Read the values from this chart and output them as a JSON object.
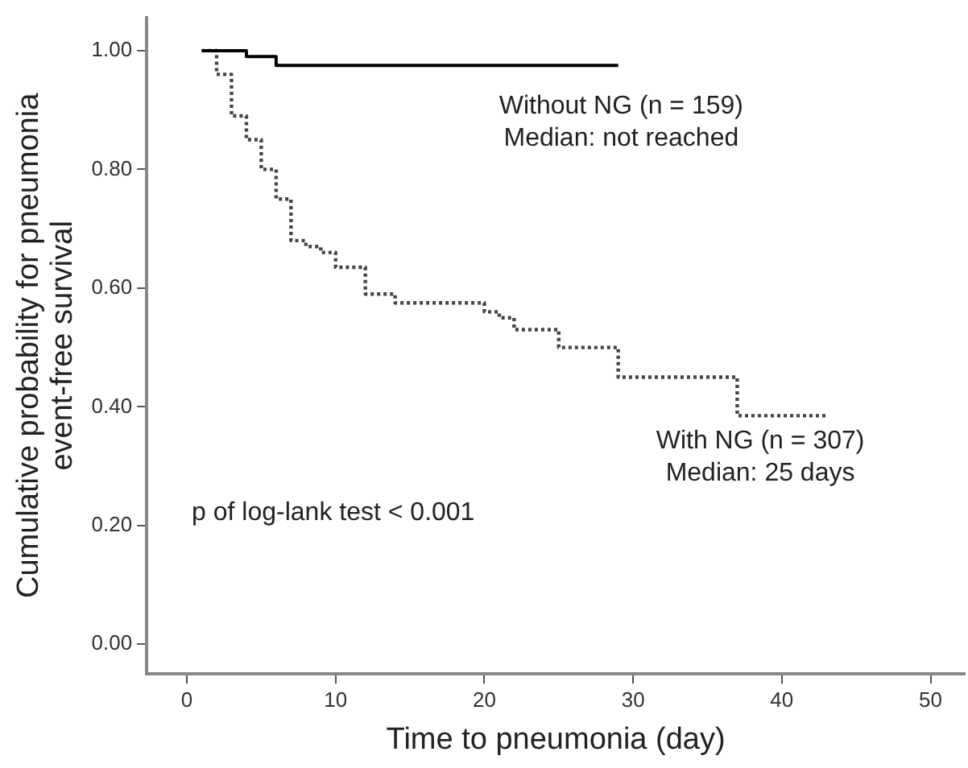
{
  "chart_data": {
    "type": "step",
    "xlabel": "Time to pneumonia (day)",
    "ylabel": "Cumulative probability for pneumonia\nevent-free survival",
    "xlim": [
      -2.7,
      52.3
    ],
    "xticks": [
      0,
      10,
      20,
      30,
      40,
      50
    ],
    "ylim": [
      -0.05,
      1.056
    ],
    "yticks": [
      {
        "value": 0,
        "label": "0.00"
      },
      {
        "value": 0.2,
        "label": "0.20"
      },
      {
        "value": 0.4,
        "label": "0.40"
      },
      {
        "value": 0.6,
        "label": "0.60"
      },
      {
        "value": 0.8,
        "label": "0.80"
      },
      {
        "value": 1,
        "label": "1.00"
      }
    ],
    "grid": false,
    "legend": false,
    "marker": "none",
    "series": [
      {
        "color": "#000000",
        "line_style": "solid",
        "x": [
          1,
          4,
          6,
          29
        ],
        "values": [
          1.0,
          0.99,
          0.975,
          0.975
        ]
      },
      {
        "color": "#444444",
        "line_style": "dotted",
        "x": [
          1,
          2,
          3,
          4,
          5,
          6,
          7,
          8,
          9,
          10,
          12,
          14,
          20,
          21,
          22,
          25,
          29,
          37,
          43
        ],
        "values": [
          1.0,
          0.96,
          0.89,
          0.85,
          0.8,
          0.75,
          0.68,
          0.67,
          0.66,
          0.635,
          0.59,
          0.575,
          0.56,
          0.55,
          0.53,
          0.5,
          0.45,
          0.385,
          0.385
        ]
      }
    ],
    "annotations": [
      "Without NG (n = 159)\nMedian: not reached",
      "With NG (n = 307)\nMedian: 25 days",
      "p of log-lank test < 0.001"
    ]
  }
}
